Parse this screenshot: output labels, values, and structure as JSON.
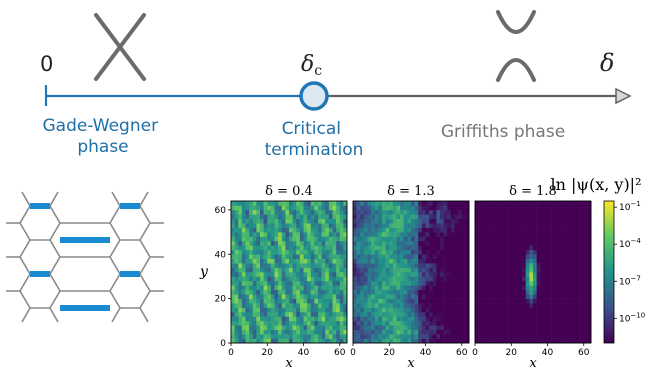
{
  "phase_diagram": {
    "origin_label": "0",
    "critical_label": "δ",
    "critical_subscript": "c",
    "axis_label": "δ",
    "left_phase": [
      "Gade-Wegner",
      "phase"
    ],
    "critical_text": [
      "Critical",
      "termination"
    ],
    "right_phase": "Griffiths phase",
    "colors": {
      "blue": "#1f77b4",
      "gray": "#606060",
      "marker_fill": "#dce9f3"
    }
  },
  "colorbar": {
    "title": "ln |ψ(x, y)|²",
    "ticks": [
      {
        "base": "10",
        "exp": "−1",
        "value": -1
      },
      {
        "base": "10",
        "exp": "−4",
        "value": -4
      },
      {
        "base": "10",
        "exp": "−7",
        "value": -7
      },
      {
        "base": "10",
        "exp": "−10",
        "value": -10
      }
    ],
    "range": [
      -12,
      -0.5
    ],
    "colormap": "viridis"
  },
  "chart_data": [
    {
      "type": "heatmap",
      "title": "δ = 0.4",
      "xlabel": "x",
      "ylabel": "y",
      "xlim": [
        0,
        64
      ],
      "ylim": [
        0,
        64
      ],
      "xticks": [
        "0",
        "20",
        "40",
        "60"
      ],
      "yticks": [
        "0",
        "20",
        "40",
        "60"
      ],
      "pattern": "extended"
    },
    {
      "type": "heatmap",
      "title": "δ = 1.3",
      "xlabel": "x",
      "xlim": [
        0,
        64
      ],
      "ylim": [
        0,
        64
      ],
      "xticks": [
        "0",
        "20",
        "40",
        "60"
      ],
      "pattern": "critical"
    },
    {
      "type": "heatmap",
      "title": "δ = 1.8",
      "xlabel": "x",
      "xlim": [
        0,
        64
      ],
      "ylim": [
        0,
        64
      ],
      "xticks": [
        "0",
        "20",
        "40",
        "60"
      ],
      "pattern": "localized"
    }
  ]
}
